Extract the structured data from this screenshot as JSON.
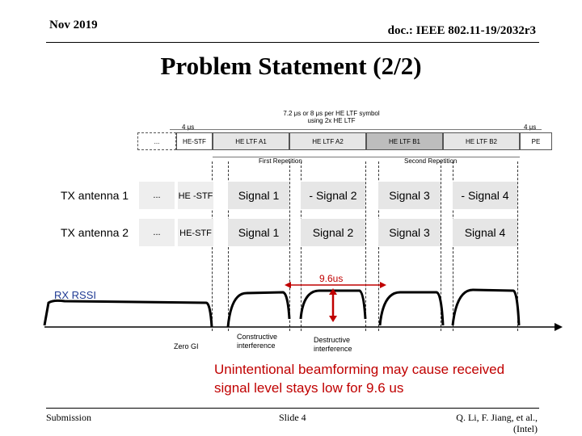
{
  "header": {
    "date": "Nov 2019",
    "doc_id": "doc.: IEEE 802.11-19/2032r3"
  },
  "title": "Problem Statement (2/2)",
  "frame": {
    "top_label_line1": "7.2 μs or 8 μs per HE LTF symbol",
    "top_label_line2": "using 2x HE LTF",
    "left_duration": "4 μs",
    "right_duration": "4 μs",
    "fields": [
      "...",
      "HE-STF",
      "HE LTF A1",
      "HE LTF A2",
      "HE LTF B1",
      "HE LTF B2",
      "PE"
    ],
    "first_repetition": "First Repetition",
    "second_repetition": "Second Repetition"
  },
  "antennas": [
    {
      "label": "TX antenna 1",
      "dots": "...",
      "stf": "HE -STF",
      "signals": [
        "Signal 1",
        "- Signal 2",
        "Signal 3",
        "- Signal 4"
      ]
    },
    {
      "label": "TX antenna 2",
      "dots": "...",
      "stf": "HE-STF",
      "signals": [
        "Signal 1",
        "Signal 2",
        "Signal 3",
        "Signal 4"
      ]
    }
  ],
  "duration_label": "9.6us",
  "rssi_label": "RX RSSI",
  "annotations": {
    "zero_gi": "Zero GI",
    "constructive": "Constructive interference",
    "destructive": "Destructive interference"
  },
  "conclusion": "Unintentional beamforming may cause received signal level stays low for 9.6 us",
  "footer": {
    "left": "Submission",
    "center": "Slide 4",
    "right_authors": "Q. Li, F. Jiang, et al.,",
    "right_org": "(Intel)"
  },
  "colors": {
    "accent_red": "#c00000",
    "cell_fill": "#e6e6e6"
  }
}
